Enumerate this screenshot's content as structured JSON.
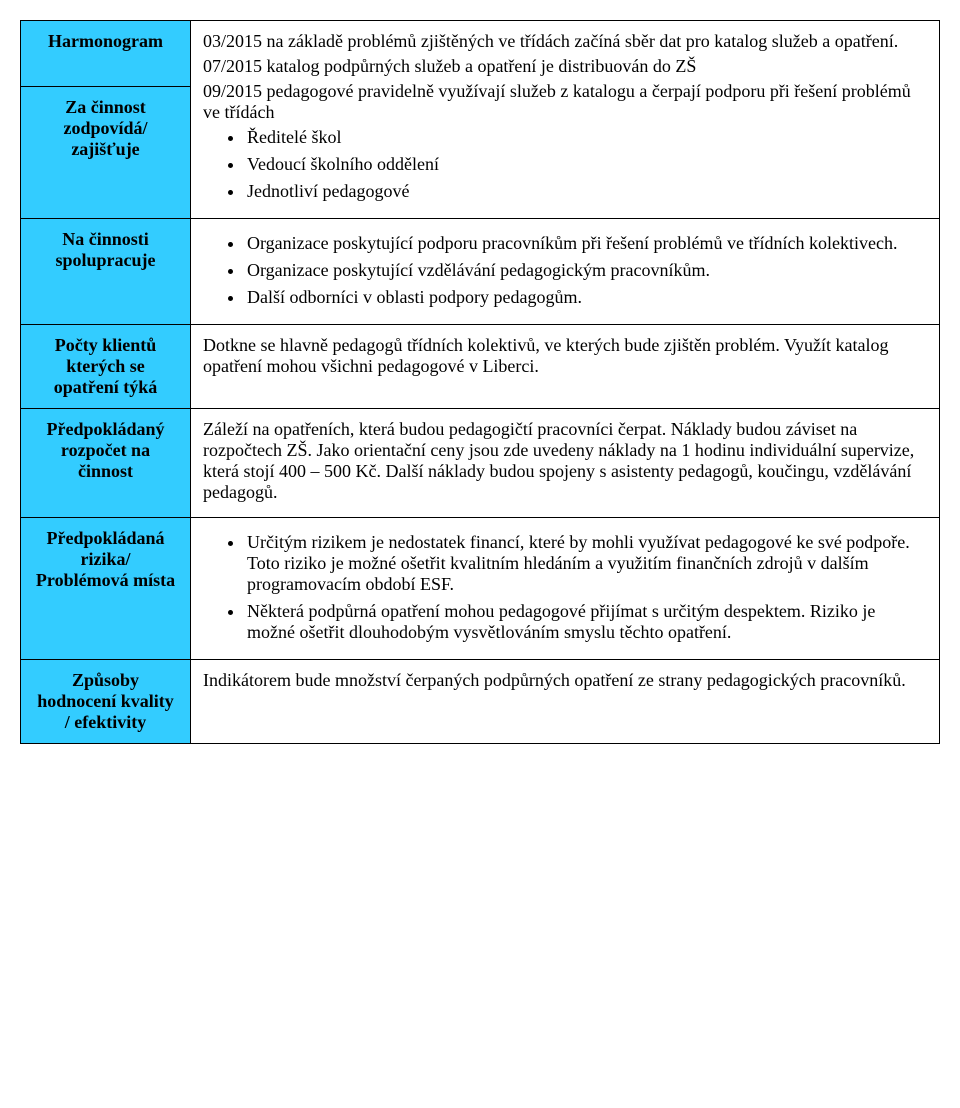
{
  "table": {
    "label_bg": "#33ccff",
    "content_bg": "#ffffff",
    "border_color": "#000000",
    "rows": [
      {
        "label": "Harmonogram",
        "paras": [
          "03/2015 na základě problémů zjištěných ve třídách začíná sběr dat pro katalog služeb a opatření.",
          "07/2015 katalog podpůrných služeb a opatření je distribuován do ZŠ",
          "09/2015 pedagogové pravidelně využívají služeb z katalogu a čerpají podporu při řešení problémů ve třídách"
        ],
        "bullets": []
      },
      {
        "label": "Za činnost zodpovídá/ zajišťuje",
        "paras": [],
        "bullets": [
          "Ředitelé škol",
          "Vedoucí školního oddělení",
          "Jednotliví pedagogové"
        ]
      },
      {
        "label": "Na činnosti spolupracuje",
        "paras": [],
        "bullets": [
          "Organizace poskytující podporu pracovníkům při řešení problémů ve třídních kolektivech.",
          "Organizace poskytující vzdělávání pedagogickým pracovníkům.",
          "Další odborníci v oblasti podpory pedagogům."
        ]
      },
      {
        "label": "Počty klientů kterých se opatření týká",
        "paras": [
          "Dotkne se hlavně pedagogů třídních kolektivů, ve kterých bude zjištěn problém. Využít katalog opatření mohou všichni pedagogové v Liberci."
        ],
        "bullets": []
      },
      {
        "label": "Předpokládaný rozpočet na činnost",
        "paras": [
          "Záleží na opatřeních, která budou pedagogičtí pracovníci čerpat. Náklady budou záviset na rozpočtech ZŠ. Jako orientační ceny jsou zde uvedeny náklady na 1 hodinu individuální supervize, která stojí 400 – 500 Kč. Další náklady budou spojeny s asistenty pedagogů, koučingu, vzdělávání pedagogů."
        ],
        "bullets": []
      },
      {
        "label": "Předpokládaná rizika/ Problémová místa",
        "paras": [],
        "bullets": [
          "Určitým rizikem je nedostatek financí, které by mohli využívat pedagogové ke své podpoře. Toto riziko je možné ošetřit kvalitním hledáním a využitím finančních zdrojů v dalším programovacím období ESF.",
          "Některá podpůrná opatření mohou pedagogové přijímat s určitým despektem. Riziko je možné ošetřit dlouhodobým vysvětlováním smyslu těchto opatření."
        ]
      },
      {
        "label": "Způsoby hodnocení kvality / efektivity",
        "paras": [
          "Indikátorem bude množství čerpaných podpůrných opatření ze strany pedagogických pracovníků."
        ],
        "bullets": []
      }
    ]
  },
  "merged_top_rows": 2
}
